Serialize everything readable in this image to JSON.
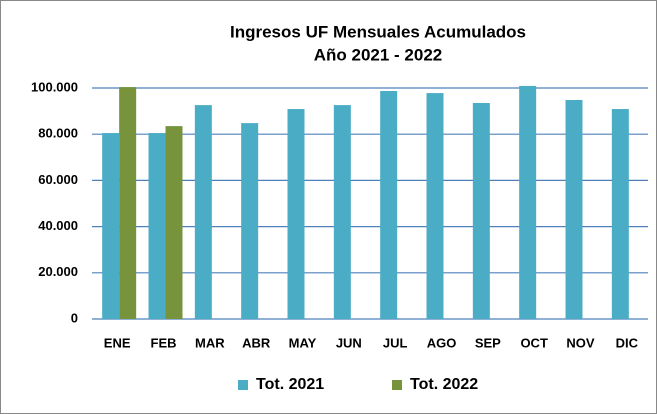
{
  "chart_data": {
    "type": "bar",
    "title": "Ingresos UF Mensuales Acumulados",
    "subtitle": "Año 2021 - 2022",
    "categories": [
      "ENE",
      "FEB",
      "MAR",
      "ABR",
      "MAY",
      "JUN",
      "JUL",
      "AGO",
      "SEP",
      "OCT",
      "NOV",
      "DIC"
    ],
    "series": [
      {
        "name": "Tot. 2021",
        "color": "#4bacc6",
        "values": [
          80500,
          80500,
          92600,
          84800,
          90900,
          92600,
          98700,
          97800,
          93500,
          100900,
          94800,
          90900
        ]
      },
      {
        "name": "Tot. 2022",
        "color": "#77933c",
        "values": [
          100400,
          83500,
          null,
          null,
          null,
          null,
          null,
          null,
          null,
          null,
          null,
          null
        ]
      }
    ],
    "ylim": [
      0,
      104000
    ],
    "yticks": [
      0,
      {
        "value": 20000,
        "label": "20.000"
      },
      {
        "value": 40000,
        "label": "40.000"
      },
      {
        "value": 60000,
        "label": "60.000"
      },
      {
        "value": 80000,
        "label": "80.000"
      },
      {
        "value": 100000,
        "label": "100.000"
      }
    ],
    "grid": true,
    "legend": "bottom"
  }
}
